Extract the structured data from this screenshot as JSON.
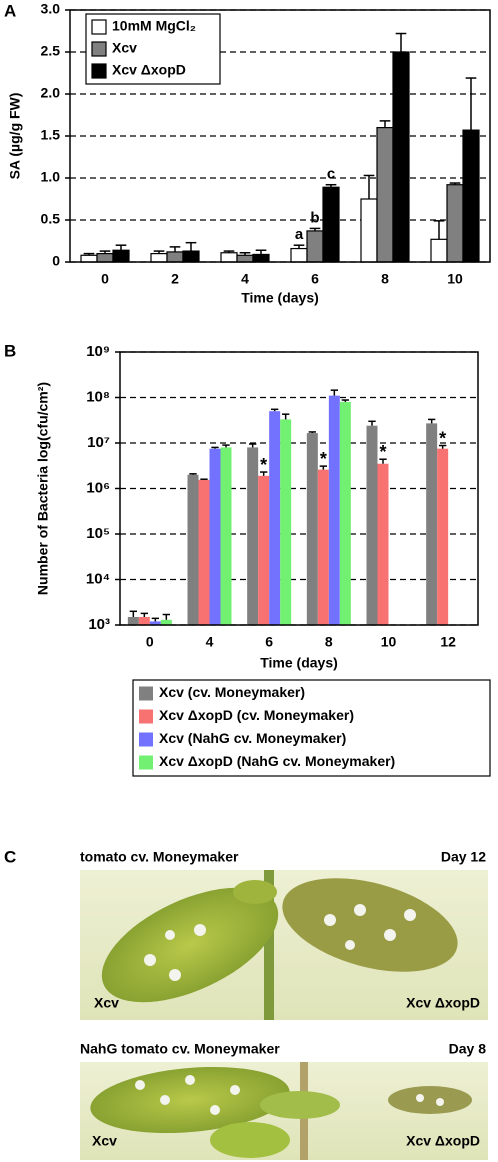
{
  "chart_data": [
    {
      "type": "bar",
      "panel_label": "A",
      "y_label": "SA (µg/g FW)",
      "x_label": "Time (days)",
      "categories": [
        "0",
        "2",
        "4",
        "6",
        "8",
        "10"
      ],
      "series": [
        {
          "name": "10mM MgCl₂",
          "color": "#ffffff",
          "values": [
            0.08,
            0.1,
            0.11,
            0.16,
            0.75,
            0.27
          ],
          "errors": [
            0.02,
            0.03,
            0.02,
            0.04,
            0.28,
            0.22
          ],
          "markers": [
            null,
            null,
            null,
            "a",
            null,
            null
          ]
        },
        {
          "name": "Xcv",
          "color": "#808080",
          "values": [
            0.1,
            0.12,
            0.08,
            0.37,
            1.6,
            0.92
          ],
          "errors": [
            0.03,
            0.06,
            0.03,
            0.03,
            0.08,
            0.02
          ],
          "markers": [
            null,
            null,
            null,
            "b",
            null,
            null
          ]
        },
        {
          "name": "Xcv ΔxopD",
          "color": "#000000",
          "values": [
            0.14,
            0.13,
            0.09,
            0.89,
            2.5,
            1.57
          ],
          "errors": [
            0.06,
            0.1,
            0.05,
            0.03,
            0.22,
            0.62
          ],
          "markers": [
            null,
            null,
            null,
            "c",
            null,
            null
          ]
        }
      ],
      "ylim": [
        0,
        3
      ],
      "yticks": [
        0,
        0.5,
        {
          "value": 1,
          "label": "1.0"
        },
        1.5,
        {
          "value": 2,
          "label": "2.0"
        },
        2.5,
        {
          "value": 3,
          "label": "3.0"
        }
      ],
      "grid": true,
      "legend": "upper left",
      "bar_outline": "#000000"
    },
    {
      "type": "bar",
      "panel_label": "B",
      "y_label": "Number of Bacteria  log(cfu/cm²)",
      "x_label": "Time (days)",
      "categories": [
        "0",
        "4",
        "6",
        "8",
        "10",
        "12"
      ],
      "series": [
        {
          "name": "Xcv (cv. Moneymaker)",
          "color": "#808080",
          "values": [
            1500,
            2000000,
            8000000,
            16500000,
            24000000,
            27000000
          ],
          "errors": [
            500,
            100000,
            1500000,
            1000000,
            6000000,
            6000000
          ],
          "markers": [
            null,
            null,
            null,
            null,
            null,
            null
          ]
        },
        {
          "name": "Xcv ΔxopD  (cv. Moneymaker)",
          "color": "#f87272",
          "values": [
            1500,
            1550000,
            1900000,
            2600000,
            3500000,
            7500000
          ],
          "errors": [
            300,
            50000,
            400000,
            500000,
            900000,
            1300000
          ],
          "markers": [
            null,
            null,
            "*",
            "*",
            "*",
            "*"
          ]
        },
        {
          "name": "Xcv (NahG cv. Moneymaker)",
          "color": "#7272ff",
          "values": [
            1200,
            7500000,
            50000000,
            110000000,
            null,
            null
          ],
          "errors": [
            200,
            500000,
            5000000,
            35000000,
            null,
            null
          ],
          "markers": [
            null,
            null,
            null,
            null,
            null,
            null
          ]
        },
        {
          "name": "Xcv ΔxopD (NahG cv. Moneymaker)",
          "color": "#72f072",
          "values": [
            1300,
            8000000,
            33000000,
            80000000,
            null,
            null
          ],
          "errors": [
            400,
            1000000,
            10000000,
            8000000,
            null,
            null
          ],
          "markers": [
            null,
            null,
            null,
            null,
            null,
            null
          ]
        }
      ],
      "yscale": "log",
      "ylim": [
        1000,
        1000000000
      ],
      "yticks": [
        {
          "value": 1000,
          "label": "10³"
        },
        {
          "value": 10000,
          "label": "10⁴"
        },
        {
          "value": 100000,
          "label": "10⁵"
        },
        {
          "value": 1000000,
          "label": "10⁶"
        },
        {
          "value": 10000000,
          "label": "10⁷"
        },
        {
          "value": 100000000,
          "label": "10⁸"
        },
        {
          "value": 1000000000,
          "label": "10⁹"
        }
      ],
      "grid": true,
      "legend": "below"
    }
  ],
  "panel_c": {
    "label": "C",
    "photos": [
      {
        "title": "tomato cv. Moneymaker",
        "day": "Day 12",
        "left_label": "Xcv",
        "right_label": "Xcv ΔxopD"
      },
      {
        "title": "NahG tomato cv. Moneymaker",
        "day": "Day 8",
        "left_label": "Xcv",
        "right_label": "Xcv ΔxopD"
      }
    ]
  }
}
